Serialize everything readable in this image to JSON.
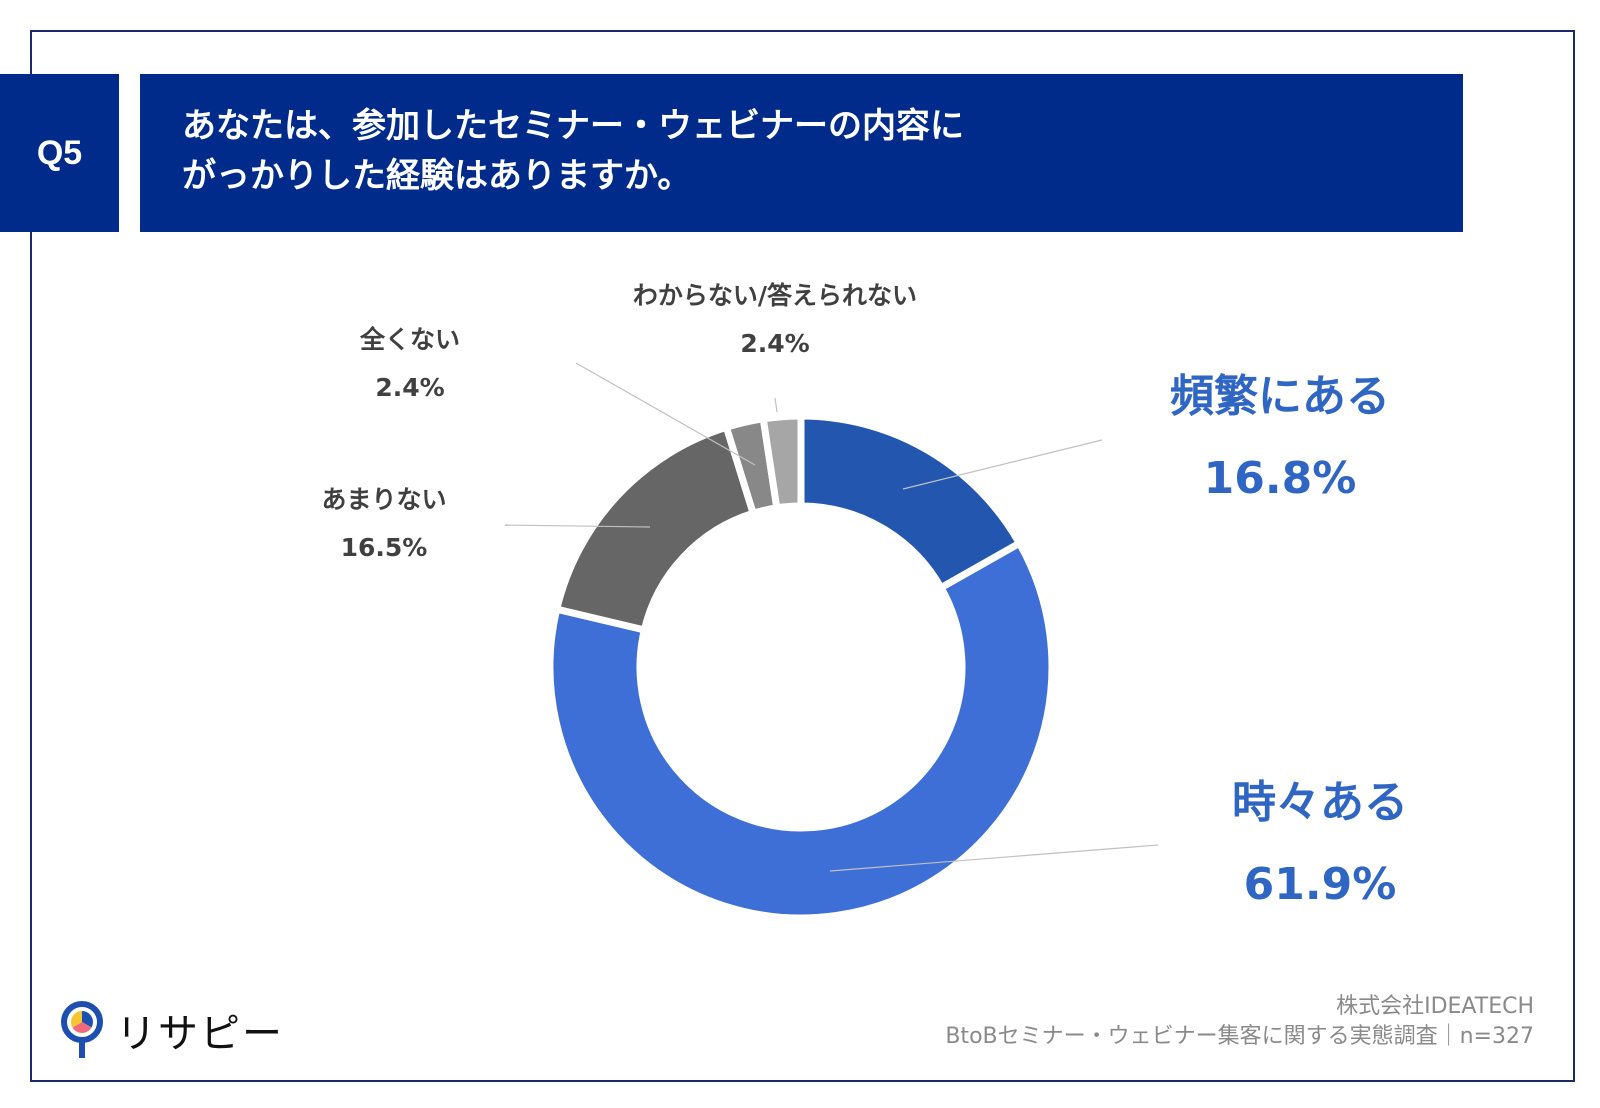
{
  "header": {
    "q_label": "Q5",
    "title_line1": "あなたは、参加したセミナー・ウェビナーの内容に",
    "title_line2": "がっかりした経験はありますか。"
  },
  "chart_data": {
    "type": "pie",
    "donut": true,
    "categories": [
      "頻繁にある",
      "時々ある",
      "あまりない",
      "全くない",
      "わからない/答えられない"
    ],
    "values": [
      16.8,
      61.9,
      16.5,
      2.4,
      2.4
    ],
    "value_labels": [
      "16.8%",
      "61.9%",
      "16.5%",
      "2.4%",
      "2.4%"
    ],
    "colors": [
      "#2356ae",
      "#3d6fd6",
      "#666666",
      "#888888",
      "#a6a6a6"
    ],
    "label_colors": [
      "#2f66c4",
      "#2f66c4",
      "#404040",
      "#404040",
      "#404040"
    ]
  },
  "footer": {
    "company": "株式会社IDEATECH",
    "survey": "BtoBセミナー・ウェビナー集客に関する実態調査｜n=327"
  },
  "logo": {
    "text": "リサピー"
  }
}
